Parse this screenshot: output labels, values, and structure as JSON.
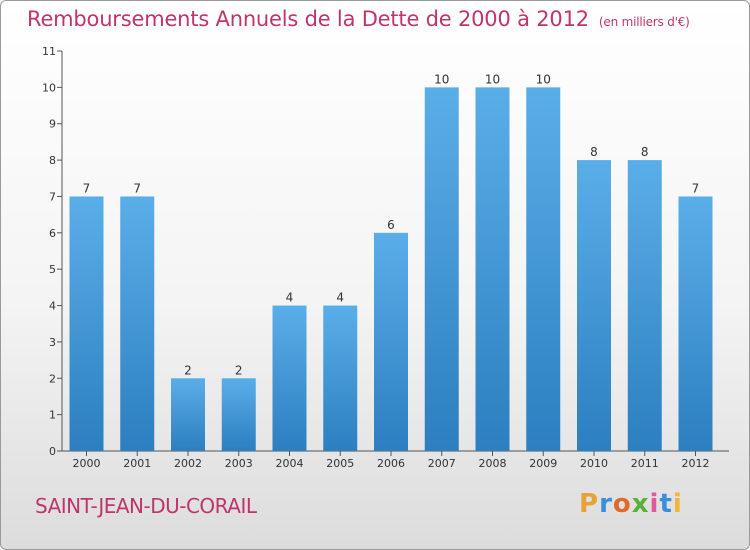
{
  "title": "Remboursements Annuels de la Dette de 2000 à 2012",
  "unit": "(en milliers d'€)",
  "commune": "SAINT-JEAN-DU-CORAIL",
  "logo": {
    "letters": [
      "P",
      "r",
      "o",
      "x",
      "i",
      "t",
      "i"
    ],
    "colors": [
      "#e8a23a",
      "#3b8fd8",
      "#e06a2a",
      "#5bb03a",
      "#e05a9a",
      "#3b8fd8",
      "#f0b53a"
    ]
  },
  "colors": {
    "title": "#c0346e",
    "bar_top": "#5aaee8",
    "bar_bottom": "#2c7fc0"
  },
  "chart_data": {
    "type": "bar",
    "categories": [
      "2000",
      "2001",
      "2002",
      "2003",
      "2004",
      "2005",
      "2006",
      "2007",
      "2008",
      "2009",
      "2010",
      "2011",
      "2012"
    ],
    "values": [
      7,
      7,
      2,
      2,
      4,
      4,
      6,
      10,
      10,
      10,
      8,
      8,
      7
    ],
    "y_ticks": [
      0,
      1,
      2,
      3,
      4,
      5,
      6,
      7,
      8,
      9,
      10,
      11
    ],
    "ylim": [
      0,
      11
    ],
    "grid": false
  }
}
